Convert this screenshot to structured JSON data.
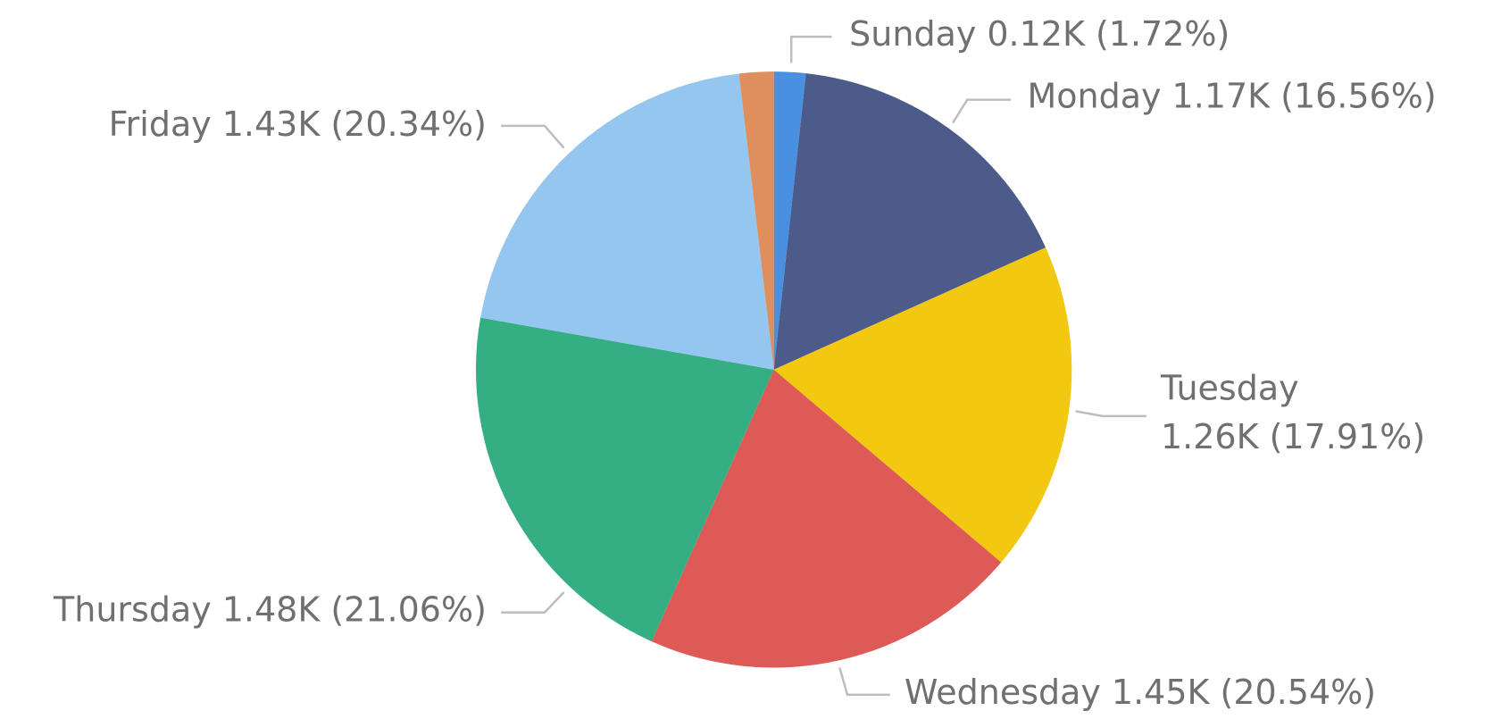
{
  "chart_data": {
    "type": "pie",
    "categories": [
      "Sunday",
      "Monday",
      "Tuesday",
      "Wednesday",
      "Thursday",
      "Friday",
      null
    ],
    "values": [
      0.12,
      1.17,
      1.26,
      1.45,
      1.48,
      1.43,
      0.13
    ],
    "percents": [
      1.72,
      16.56,
      17.91,
      20.54,
      21.06,
      20.34,
      1.87
    ],
    "value_labels": [
      "0.12K (1.72%)",
      "1.17K (16.56%)",
      "1.26K (17.91%)",
      "1.45K (20.54%)",
      "1.48K (21.06%)",
      "1.43K (20.34%)",
      null
    ],
    "colors": [
      "#4a90e0",
      "#4c5b8a",
      "#f2c811",
      "#dd5a57",
      "#35ae84",
      "#94c6ef",
      "#df8f5e"
    ]
  }
}
